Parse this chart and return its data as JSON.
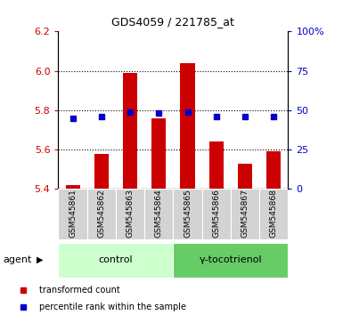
{
  "title": "GDS4059 / 221785_at",
  "samples": [
    "GSM545861",
    "GSM545862",
    "GSM545863",
    "GSM545864",
    "GSM545865",
    "GSM545866",
    "GSM545867",
    "GSM545868"
  ],
  "bar_values": [
    5.42,
    5.58,
    5.99,
    5.76,
    6.04,
    5.64,
    5.53,
    5.59
  ],
  "bar_base": 5.4,
  "percentile_values": [
    45,
    46,
    49,
    48,
    49,
    46,
    46,
    46
  ],
  "ylim": [
    5.4,
    6.2
  ],
  "y2lim": [
    0,
    100
  ],
  "yticks": [
    5.4,
    5.6,
    5.8,
    6.0,
    6.2
  ],
  "y2ticks": [
    0,
    25,
    50,
    75,
    100
  ],
  "bar_color": "#cc0000",
  "dot_color": "#0000cc",
  "groups": [
    {
      "label": "control",
      "samples": [
        0,
        1,
        2,
        3
      ],
      "color": "#ccffcc"
    },
    {
      "label": "γ-tocotrienol",
      "samples": [
        4,
        5,
        6,
        7
      ],
      "color": "#66cc66"
    }
  ],
  "agent_label": "agent",
  "legend_items": [
    {
      "color": "#cc0000",
      "label": "transformed count"
    },
    {
      "color": "#0000cc",
      "label": "percentile rank within the sample"
    }
  ],
  "bar_width": 0.5,
  "tick_label_color_left": "#cc0000",
  "tick_label_color_right": "#0000cc",
  "gridlines": [
    5.6,
    5.8,
    6.0
  ]
}
